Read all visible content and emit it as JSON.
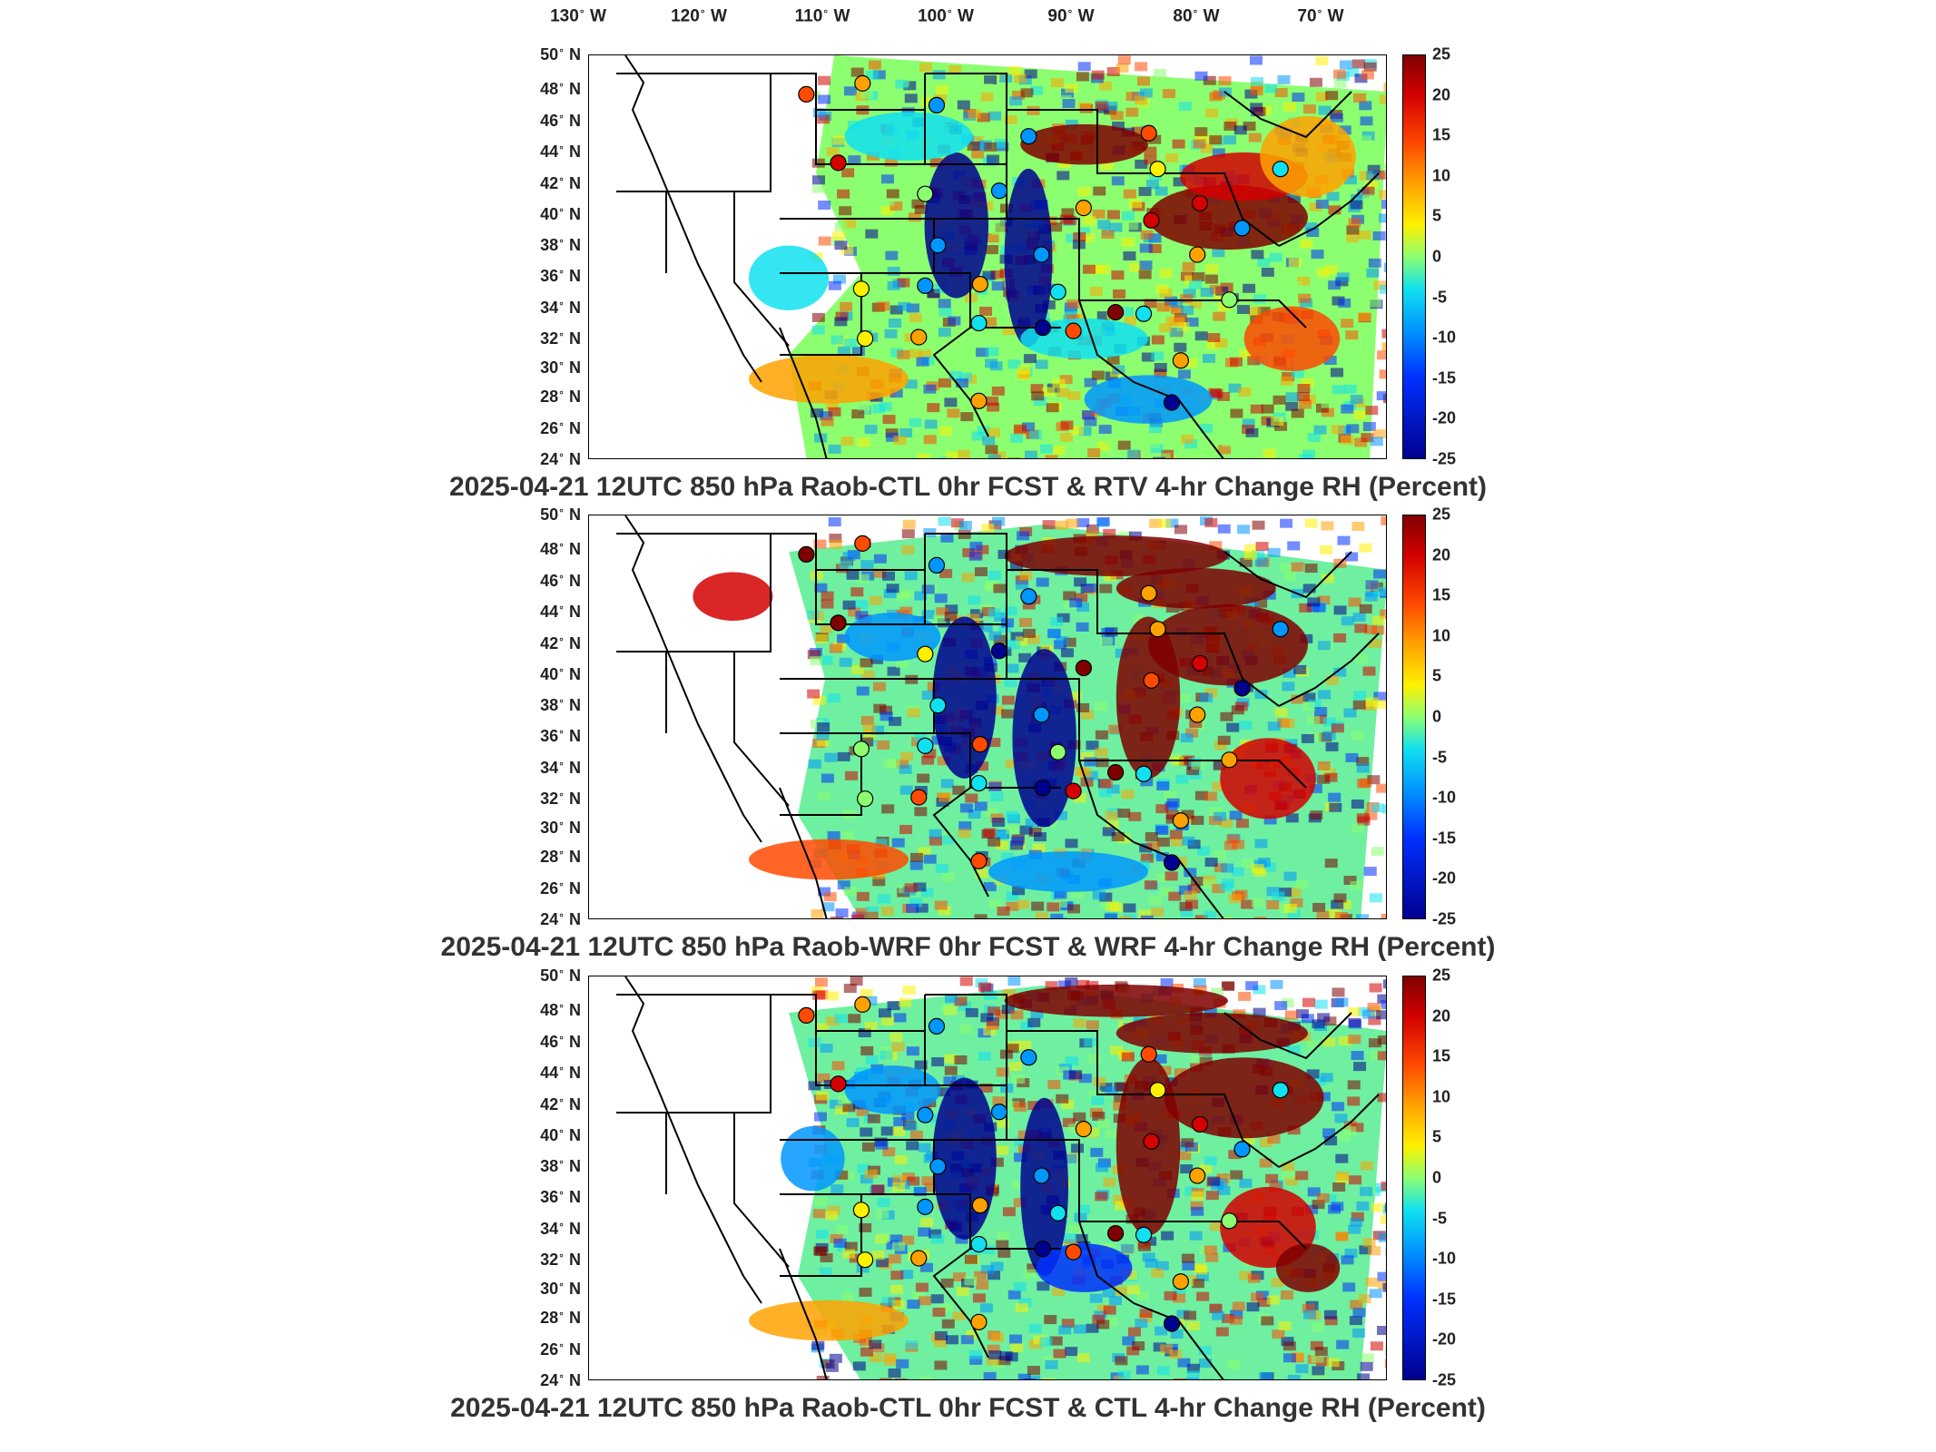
{
  "lon_labels": [
    "130",
    "W",
    "120",
    "W",
    "110",
    "W",
    "100",
    "W",
    "90",
    "W",
    "80",
    "W",
    "70",
    "W"
  ],
  "lon_ticks": [
    {
      "deg": "130",
      "dir": "W"
    },
    {
      "deg": "120",
      "dir": "W"
    },
    {
      "deg": "110",
      "dir": "W"
    },
    {
      "deg": "100",
      "dir": "W"
    },
    {
      "deg": "90",
      "dir": "W"
    },
    {
      "deg": "80",
      "dir": "W"
    },
    {
      "deg": "70",
      "dir": "W"
    }
  ],
  "lat_ticks": [
    {
      "deg": "50",
      "dir": "N"
    },
    {
      "deg": "48",
      "dir": "N"
    },
    {
      "deg": "46",
      "dir": "N"
    },
    {
      "deg": "44",
      "dir": "N"
    },
    {
      "deg": "42",
      "dir": "N"
    },
    {
      "deg": "40",
      "dir": "N"
    },
    {
      "deg": "38",
      "dir": "N"
    },
    {
      "deg": "36",
      "dir": "N"
    },
    {
      "deg": "34",
      "dir": "N"
    },
    {
      "deg": "32",
      "dir": "N"
    },
    {
      "deg": "30",
      "dir": "N"
    },
    {
      "deg": "28",
      "dir": "N"
    },
    {
      "deg": "26",
      "dir": "N"
    },
    {
      "deg": "24",
      "dir": "N"
    }
  ],
  "colorbar_ticks": [
    "25",
    "20",
    "15",
    "10",
    "5",
    "0",
    "-5",
    "-10",
    "-15",
    "-20",
    "-25"
  ],
  "colorbar_range": [
    -25,
    25
  ],
  "colormap": [
    "#7f0000",
    "#d40000",
    "#ff4a00",
    "#ffa200",
    "#fff000",
    "#8cff70",
    "#10e0f0",
    "#0096ff",
    "#0030ff",
    "#00008f"
  ],
  "panels": [
    {
      "title": "2025-04-21 12UTC 850 hPa Raob-CTL 0hr FCST & RTV 4-hr Change RH (Percent)"
    },
    {
      "title": "2025-04-21 12UTC 850 hPa Raob-WRF 0hr FCST & WRF 4-hr Change RH (Percent)"
    },
    {
      "title": "2025-04-21 12UTC 850 hPa Raob-CTL 0hr FCST & CTL 4-hr Change RH (Percent)"
    }
  ],
  "raob_stations": {
    "panel1": [
      {
        "lon": -111.0,
        "lat": 47.5,
        "value": 12
      },
      {
        "lon": -106.6,
        "lat": 48.2,
        "value": 8
      },
      {
        "lon": -100.8,
        "lat": 46.8,
        "value": -14
      },
      {
        "lon": -93.6,
        "lat": 44.8,
        "value": -10
      },
      {
        "lon": -108.5,
        "lat": 43.1,
        "value": 16
      },
      {
        "lon": -101.7,
        "lat": 41.1,
        "value": -3
      },
      {
        "lon": -95.9,
        "lat": 41.3,
        "value": -10
      },
      {
        "lon": -89.3,
        "lat": 40.2,
        "value": 10
      },
      {
        "lon": -84.2,
        "lat": 45.0,
        "value": 12
      },
      {
        "lon": -83.5,
        "lat": 42.7,
        "value": 4
      },
      {
        "lon": -84.0,
        "lat": 39.4,
        "value": 16
      },
      {
        "lon": -80.2,
        "lat": 40.5,
        "value": 20
      },
      {
        "lon": -73.9,
        "lat": 42.7,
        "value": -8
      },
      {
        "lon": -100.7,
        "lat": 37.8,
        "value": -10
      },
      {
        "lon": -92.6,
        "lat": 37.2,
        "value": -12
      },
      {
        "lon": -97.4,
        "lat": 35.3,
        "value": 6
      },
      {
        "lon": -91.3,
        "lat": 34.8,
        "value": -8
      },
      {
        "lon": -106.7,
        "lat": 35.0,
        "value": 2
      },
      {
        "lon": -101.7,
        "lat": 35.2,
        "value": -12
      },
      {
        "lon": -86.8,
        "lat": 33.5,
        "value": 22
      },
      {
        "lon": -84.6,
        "lat": 33.4,
        "value": -8
      },
      {
        "lon": -97.5,
        "lat": 32.8,
        "value": -6
      },
      {
        "lon": -90.1,
        "lat": 32.3,
        "value": 14
      },
      {
        "lon": -92.5,
        "lat": 32.5,
        "value": -20
      },
      {
        "lon": -102.2,
        "lat": 31.9,
        "value": 8
      },
      {
        "lon": -106.4,
        "lat": 31.8,
        "value": 4
      },
      {
        "lon": -80.4,
        "lat": 37.2,
        "value": 6
      },
      {
        "lon": -77.9,
        "lat": 34.3,
        "value": -4
      },
      {
        "lon": -81.7,
        "lat": 30.4,
        "value": 10
      },
      {
        "lon": -97.5,
        "lat": 27.8,
        "value": 10
      },
      {
        "lon": -82.4,
        "lat": 27.7,
        "value": -22
      },
      {
        "lon": -76.9,
        "lat": 38.9,
        "value": -12
      }
    ],
    "panel2": [
      {
        "lon": -111.0,
        "lat": 47.5,
        "value": 22
      },
      {
        "lon": -106.6,
        "lat": 48.2,
        "value": 14
      },
      {
        "lon": -100.8,
        "lat": 46.8,
        "value": -14
      },
      {
        "lon": -93.6,
        "lat": 44.8,
        "value": -10
      },
      {
        "lon": -108.5,
        "lat": 43.1,
        "value": 22
      },
      {
        "lon": -101.7,
        "lat": 41.1,
        "value": 2
      },
      {
        "lon": -95.9,
        "lat": 41.3,
        "value": -22
      },
      {
        "lon": -89.3,
        "lat": 40.2,
        "value": 22
      },
      {
        "lon": -84.2,
        "lat": 45.0,
        "value": 8
      },
      {
        "lon": -83.5,
        "lat": 42.7,
        "value": 10
      },
      {
        "lon": -84.0,
        "lat": 39.4,
        "value": 12
      },
      {
        "lon": -80.2,
        "lat": 40.5,
        "value": 18
      },
      {
        "lon": -73.9,
        "lat": 42.7,
        "value": -10
      },
      {
        "lon": -100.7,
        "lat": 37.8,
        "value": -6
      },
      {
        "lon": -92.6,
        "lat": 37.2,
        "value": -12
      },
      {
        "lon": -97.4,
        "lat": 35.3,
        "value": 12
      },
      {
        "lon": -91.3,
        "lat": 34.8,
        "value": 0
      },
      {
        "lon": -106.7,
        "lat": 35.0,
        "value": 0
      },
      {
        "lon": -101.7,
        "lat": 35.2,
        "value": -8
      },
      {
        "lon": -86.8,
        "lat": 33.5,
        "value": 22
      },
      {
        "lon": -84.6,
        "lat": 33.4,
        "value": -8
      },
      {
        "lon": -97.5,
        "lat": 32.8,
        "value": -6
      },
      {
        "lon": -90.1,
        "lat": 32.3,
        "value": 20
      },
      {
        "lon": -92.5,
        "lat": 32.5,
        "value": -22
      },
      {
        "lon": -102.2,
        "lat": 31.9,
        "value": 12
      },
      {
        "lon": -106.4,
        "lat": 31.8,
        "value": 0
      },
      {
        "lon": -80.4,
        "lat": 37.2,
        "value": 8
      },
      {
        "lon": -77.9,
        "lat": 34.3,
        "value": 8
      },
      {
        "lon": -81.7,
        "lat": 30.4,
        "value": 8
      },
      {
        "lon": -97.5,
        "lat": 27.8,
        "value": 14
      },
      {
        "lon": -82.4,
        "lat": 27.7,
        "value": -22
      },
      {
        "lon": -76.9,
        "lat": 38.9,
        "value": -20
      }
    ],
    "panel3": [
      {
        "lon": -111.0,
        "lat": 47.5,
        "value": 12
      },
      {
        "lon": -106.6,
        "lat": 48.2,
        "value": 8
      },
      {
        "lon": -100.8,
        "lat": 46.8,
        "value": -14
      },
      {
        "lon": -93.6,
        "lat": 44.8,
        "value": -10
      },
      {
        "lon": -108.5,
        "lat": 43.1,
        "value": 16
      },
      {
        "lon": -101.7,
        "lat": 41.1,
        "value": -10
      },
      {
        "lon": -95.9,
        "lat": 41.3,
        "value": -10
      },
      {
        "lon": -89.3,
        "lat": 40.2,
        "value": 8
      },
      {
        "lon": -84.2,
        "lat": 45.0,
        "value": 12
      },
      {
        "lon": -83.5,
        "lat": 42.7,
        "value": 4
      },
      {
        "lon": -84.0,
        "lat": 39.4,
        "value": 16
      },
      {
        "lon": -80.2,
        "lat": 40.5,
        "value": 20
      },
      {
        "lon": -73.9,
        "lat": 42.7,
        "value": -8
      },
      {
        "lon": -100.7,
        "lat": 37.8,
        "value": -10
      },
      {
        "lon": -92.6,
        "lat": 37.2,
        "value": -12
      },
      {
        "lon": -97.4,
        "lat": 35.3,
        "value": 6
      },
      {
        "lon": -91.3,
        "lat": 34.8,
        "value": -8
      },
      {
        "lon": -106.7,
        "lat": 35.0,
        "value": 2
      },
      {
        "lon": -101.7,
        "lat": 35.2,
        "value": -12
      },
      {
        "lon": -86.8,
        "lat": 33.5,
        "value": 22
      },
      {
        "lon": -84.6,
        "lat": 33.4,
        "value": -8
      },
      {
        "lon": -97.5,
        "lat": 32.8,
        "value": -6
      },
      {
        "lon": -90.1,
        "lat": 32.3,
        "value": 12
      },
      {
        "lon": -92.5,
        "lat": 32.5,
        "value": -20
      },
      {
        "lon": -102.2,
        "lat": 31.9,
        "value": 8
      },
      {
        "lon": -106.4,
        "lat": 31.8,
        "value": 4
      },
      {
        "lon": -80.4,
        "lat": 37.2,
        "value": 6
      },
      {
        "lon": -77.9,
        "lat": 34.3,
        "value": -4
      },
      {
        "lon": -81.7,
        "lat": 30.4,
        "value": 10
      },
      {
        "lon": -97.5,
        "lat": 27.8,
        "value": 10
      },
      {
        "lon": -82.4,
        "lat": 27.7,
        "value": -22
      },
      {
        "lon": -76.9,
        "lat": 38.9,
        "value": -12
      }
    ]
  }
}
